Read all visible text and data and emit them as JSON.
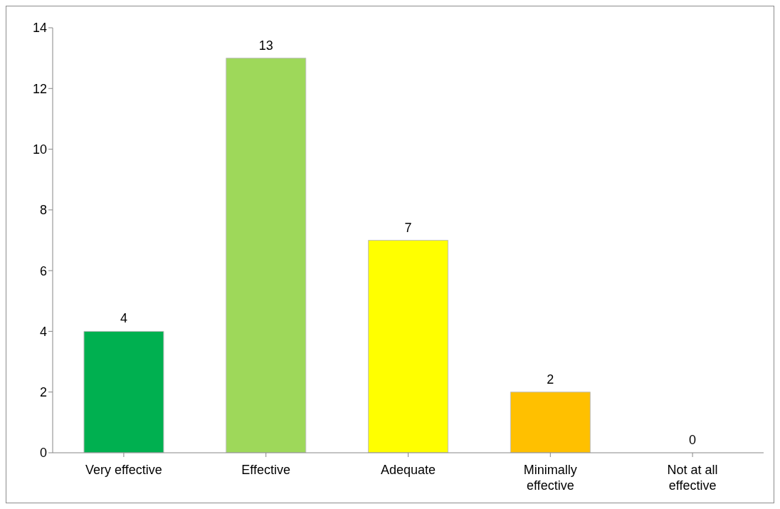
{
  "chart_data": {
    "type": "bar",
    "categories": [
      "Very effective",
      "Effective",
      "Adequate",
      "Minimally effective",
      "Not at all effective"
    ],
    "values": [
      4,
      13,
      7,
      2,
      0
    ],
    "colors": [
      "#00b050",
      "#9ed85a",
      "#ffff00",
      "#ffc000",
      "#ffffff"
    ],
    "ylim": [
      0,
      14
    ],
    "yticks": [
      0,
      2,
      4,
      6,
      8,
      10,
      12,
      14
    ],
    "grid": false,
    "data_labels": true,
    "legend": false
  }
}
